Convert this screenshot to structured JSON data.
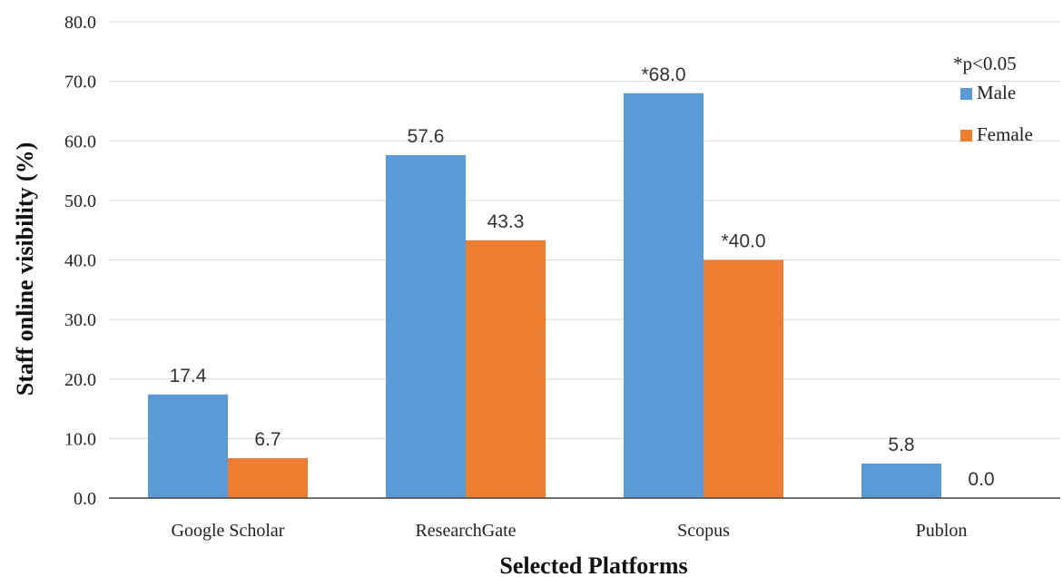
{
  "chart_data": {
    "type": "bar",
    "categories": [
      "Google Scholar",
      "ResearchGate",
      "Scopus",
      "Publon"
    ],
    "series": [
      {
        "name": "Male",
        "color": "#5b9bd5",
        "values": [
          17.4,
          57.6,
          68.0,
          5.8
        ],
        "labels": [
          "17.4",
          "57.6",
          "*68.0",
          "5.8"
        ]
      },
      {
        "name": "Female",
        "color": "#ed7d31",
        "values": [
          6.7,
          43.3,
          40.0,
          0.0
        ],
        "labels": [
          "6.7",
          "43.3",
          "*40.0",
          "0.0"
        ]
      }
    ],
    "xlabel": "Selected Platforms",
    "ylabel": "Staff online visibility (%)",
    "ylim": [
      0,
      80
    ],
    "yticks": [
      "0.0",
      "10.0",
      "20.0",
      "30.0",
      "40.0",
      "50.0",
      "60.0",
      "70.0",
      "80.0"
    ],
    "grid": true,
    "legend_position": "top-right",
    "annotation": "*p<0.05"
  }
}
